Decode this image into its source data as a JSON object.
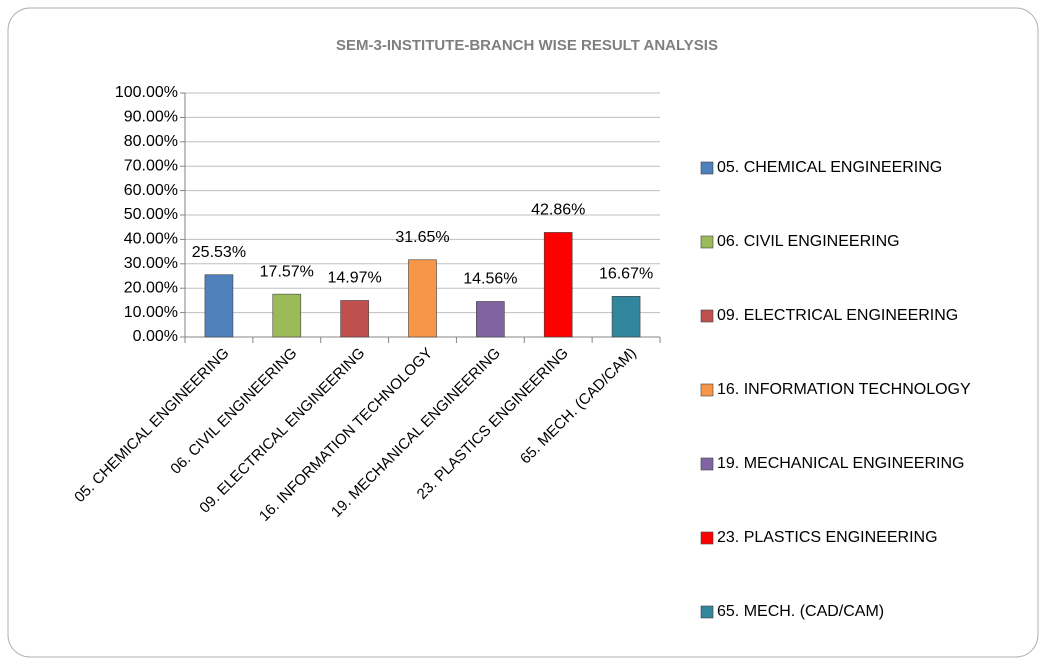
{
  "chart_data": {
    "type": "bar",
    "title": "SEM-3-INSTITUTE-BRANCH WISE RESULT ANALYSIS",
    "categories": [
      "05. CHEMICAL ENGINEERING",
      "06. CIVIL ENGINEERING",
      "09. ELECTRICAL ENGINEERING",
      "16. INFORMATION TECHNOLOGY",
      "19. MECHANICAL ENGINEERING",
      "23. PLASTICS ENGINEERING",
      "65. MECH. (CAD/CAM)"
    ],
    "values": [
      25.53,
      17.57,
      14.97,
      31.65,
      14.56,
      42.86,
      16.67
    ],
    "value_labels": [
      "25.53%",
      "17.57%",
      "14.97%",
      "31.65%",
      "14.56%",
      "42.86%",
      "16.67%"
    ],
    "colors": [
      "#4f81bd",
      "#9bbb59",
      "#c0504d",
      "#f79646",
      "#8064a2",
      "#ff0000",
      "#31859c"
    ],
    "ylim": [
      0,
      100
    ],
    "yticks": [
      {
        "value": 0,
        "label": "0.00%"
      },
      {
        "value": 10,
        "label": "10.00%"
      },
      {
        "value": 20,
        "label": "20.00%"
      },
      {
        "value": 30,
        "label": "30.00%"
      },
      {
        "value": 40,
        "label": "40.00%"
      },
      {
        "value": 50,
        "label": "50.00%"
      },
      {
        "value": 60,
        "label": "60.00%"
      },
      {
        "value": 70,
        "label": "70.00%"
      },
      {
        "value": 80,
        "label": "80.00%"
      },
      {
        "value": 90,
        "label": "90.00%"
      },
      {
        "value": 100,
        "label": "100.00%"
      }
    ],
    "grid": true,
    "legend": "right"
  }
}
